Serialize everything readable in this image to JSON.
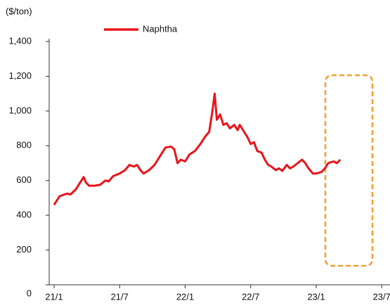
{
  "chart_data": {
    "type": "line",
    "y_label": "($/ton)",
    "x": [
      0,
      0.5,
      1.2,
      1.5,
      2.0,
      2.3,
      2.7,
      2.9,
      3.2,
      3.7,
      4.2,
      4.7,
      5.0,
      5.4,
      6.0,
      6.5,
      6.9,
      7.3,
      7.6,
      7.9,
      8.2,
      8.7,
      9.2,
      9.7,
      10.2,
      10.7,
      11.0,
      11.3,
      11.6,
      12.0,
      12.4,
      12.9,
      13.4,
      13.8,
      14.2,
      14.5,
      14.7,
      14.9,
      15.2,
      15.5,
      15.8,
      16.1,
      16.5,
      16.8,
      17.0,
      17.4,
      17.7,
      18.0,
      18.3,
      18.6,
      19.0,
      19.3,
      19.6,
      19.9,
      20.3,
      20.6,
      20.9,
      21.3,
      21.6,
      21.9,
      22.3,
      22.7,
      23.0,
      23.3,
      23.7,
      24.0,
      24.5,
      24.8,
      25.1,
      25.6,
      25.9,
      26.2
    ],
    "series": [
      {
        "name": "Naphtha",
        "color": "#e8141b",
        "values": [
          460,
          510,
          525,
          520,
          550,
          580,
          620,
          590,
          570,
          570,
          575,
          600,
          595,
          625,
          640,
          660,
          690,
          680,
          690,
          660,
          640,
          660,
          690,
          740,
          790,
          795,
          780,
          700,
          720,
          710,
          750,
          770,
          810,
          850,
          880,
          1000,
          1100,
          950,
          980,
          920,
          930,
          900,
          920,
          890,
          920,
          880,
          850,
          810,
          820,
          770,
          760,
          720,
          690,
          680,
          660,
          670,
          655,
          690,
          670,
          680,
          700,
          720,
          700,
          670,
          640,
          640,
          650,
          670,
          700,
          710,
          700,
          720
        ]
      }
    ],
    "xlim": [
      0,
      30.5
    ],
    "xticks": [
      {
        "value": 0,
        "label": "21/1"
      },
      {
        "value": 6,
        "label": "21/7"
      },
      {
        "value": 12,
        "label": "22/1"
      },
      {
        "value": 18,
        "label": "22/7"
      },
      {
        "value": 24,
        "label": "23/1"
      },
      {
        "value": 30,
        "label": "23/7"
      }
    ],
    "ylim": [
      0,
      1400
    ],
    "yticks": [
      0,
      200,
      400,
      600,
      800,
      {
        "value": 1000,
        "label": "1,000"
      },
      {
        "value": 1200,
        "label": "1,200"
      },
      {
        "value": 1400,
        "label": "1,400"
      }
    ],
    "grid": false,
    "legend": "top"
  }
}
